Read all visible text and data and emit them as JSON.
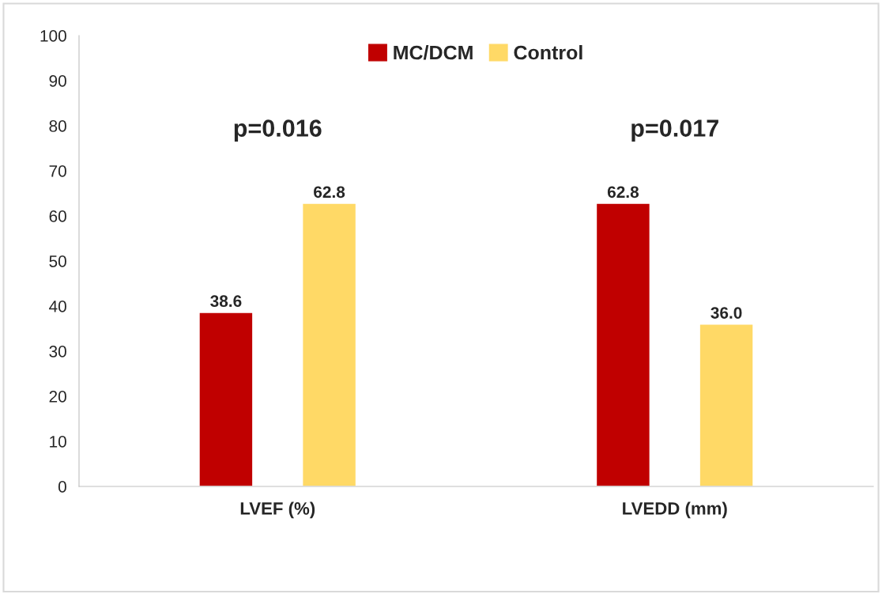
{
  "chart_data": {
    "type": "bar",
    "categories": [
      "LVEF (%)",
      "LVEDD (mm)"
    ],
    "series": [
      {
        "name": "MC/DCM",
        "color": "#c00000",
        "values": [
          38.6,
          62.8
        ],
        "value_labels": [
          "38.6",
          "62.8"
        ]
      },
      {
        "name": "Control",
        "color": "#ffd966",
        "values": [
          62.8,
          36.0
        ],
        "value_labels": [
          "62.8",
          "36.0"
        ]
      }
    ],
    "ylim": [
      0,
      100
    ],
    "yticks": [
      0,
      10,
      20,
      30,
      40,
      50,
      60,
      70,
      80,
      90,
      100
    ],
    "annotations": [
      "p=0.016",
      "p=0.017"
    ],
    "legend": "top",
    "grid": false
  }
}
